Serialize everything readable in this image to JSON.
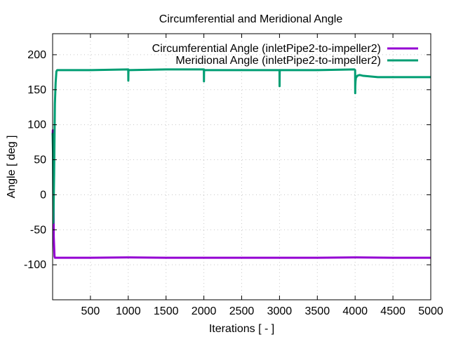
{
  "chart_data": {
    "type": "line",
    "title": "Circumferential and Meridional Angle",
    "xlabel": "Iterations [ - ]",
    "ylabel": "Angle [ deg ]",
    "xlim": [
      0,
      5000
    ],
    "ylim": [
      -150,
      230
    ],
    "xticks": [
      500,
      1000,
      1500,
      2000,
      2500,
      3000,
      3500,
      4000,
      4500,
      5000
    ],
    "xtick_labels": [
      "500",
      "1000",
      "1500",
      "2000",
      "2500",
      "3000",
      "3500",
      "4000",
      "4500",
      "5000"
    ],
    "yticks": [
      -100,
      -50,
      0,
      50,
      100,
      150,
      200
    ],
    "ytick_labels": [
      "-100",
      "-50",
      "0",
      "50",
      "100",
      "150",
      "200"
    ],
    "grid": true,
    "legend_position": "top-right",
    "series": [
      {
        "name": "Circumferential Angle (inletPipe2-to-impeller2)",
        "color": "#9400d3",
        "x": [
          0,
          3,
          8,
          15,
          25,
          30,
          500,
          1000,
          1500,
          2000,
          2500,
          3000,
          3500,
          4000,
          4500,
          5000
        ],
        "y": [
          85,
          92,
          75,
          -60,
          -88,
          -90,
          -90,
          -89.5,
          -90,
          -90,
          -90,
          -90,
          -90,
          -89.5,
          -90,
          -90
        ]
      },
      {
        "name": "Meridional Angle (inletPipe2-to-impeller2)",
        "color": "#009e73",
        "x": [
          0,
          5,
          10,
          20,
          30,
          40,
          50,
          60,
          100,
          500,
          1000,
          1001,
          1002,
          1003,
          1500,
          2000,
          2001,
          2002,
          2003,
          2500,
          3000,
          3001,
          3002,
          3003,
          3005,
          3500,
          3990,
          4000,
          4001,
          4002,
          4005,
          4010,
          4030,
          4060,
          4100,
          4200,
          4300,
          4500,
          4700,
          5000
        ],
        "y": [
          88,
          60,
          -40,
          30,
          130,
          160,
          176,
          178,
          178,
          178,
          179,
          163,
          172,
          178,
          179,
          179,
          162,
          172,
          178,
          178,
          178,
          155,
          170,
          176,
          178,
          178,
          179,
          178,
          145,
          155,
          162,
          167,
          170,
          171,
          170,
          169,
          168,
          168,
          168,
          168
        ]
      }
    ]
  }
}
